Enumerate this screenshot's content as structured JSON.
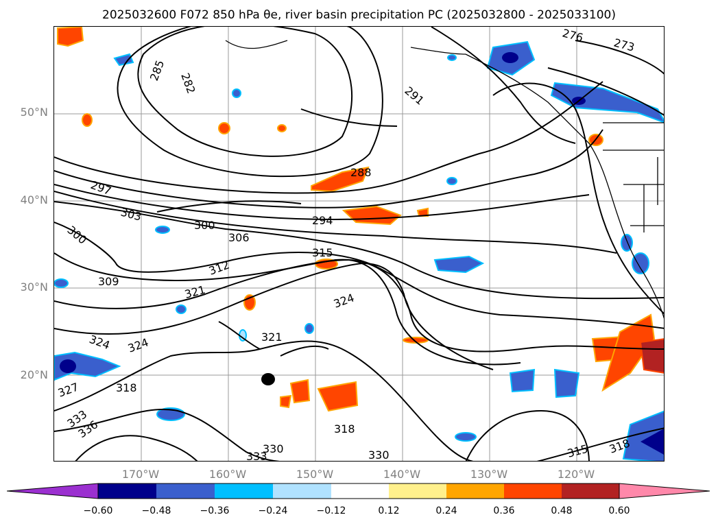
{
  "title": "2025032600 F072 850 hPa θe, river basin precipitation PC (2025032800 - 2025033100)",
  "lat_labels": [
    "50°N",
    "40°N",
    "30°N",
    "20°N"
  ],
  "lon_labels": [
    "170°W",
    "160°W",
    "150°W",
    "140°W",
    "130°W",
    "120°W"
  ],
  "contour_labels": [
    "285",
    "282",
    "276",
    "273",
    "288",
    "291",
    "297",
    "303",
    "300",
    "300",
    "306",
    "294",
    "312",
    "315",
    "309",
    "321",
    "324",
    "324",
    "324",
    "321",
    "327",
    "318",
    "318",
    "333",
    "336",
    "333",
    "330",
    "330",
    "315",
    "318"
  ],
  "colorbar": {
    "ticks": [
      "−0.60",
      "−0.48",
      "−0.36",
      "−0.24",
      "−0.12",
      "0.12",
      "0.24",
      "0.36",
      "0.48",
      "0.60"
    ],
    "colors": [
      "#9b30d0",
      "#00008b",
      "#3a5fcd",
      "#00bfff",
      "#b0e2ff",
      "#ffffff",
      "#fff08c",
      "#ffa500",
      "#ff4500",
      "#b22222",
      "#ff88aa"
    ]
  }
}
